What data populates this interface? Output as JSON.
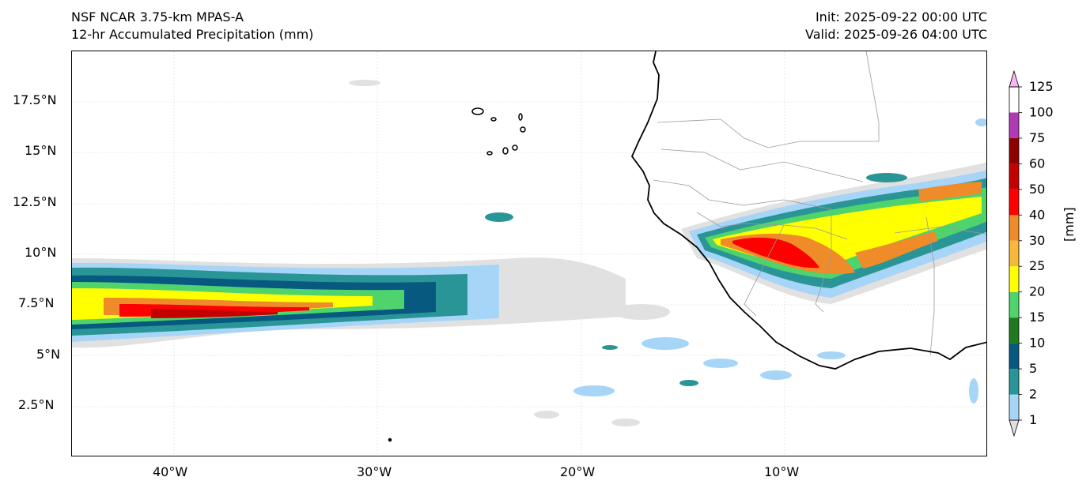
{
  "header": {
    "model": "NSF NCAR 3.75-km MPAS-A",
    "field": "12-hr Accumulated Precipitation (mm)",
    "init": "Init: 2025-09-22 00:00 UTC",
    "valid": "Valid: 2025-09-26 04:00 UTC"
  },
  "map": {
    "lon_range": [
      -45,
      0
    ],
    "lat_range": [
      0,
      20
    ],
    "lon_ticks": [
      "40°W",
      "30°W",
      "20°W",
      "10°W"
    ],
    "lat_ticks": [
      "17.5°N",
      "15°N",
      "12.5°N",
      "10°N",
      "7.5°N",
      "5°N",
      "2.5°N"
    ],
    "coastline_color": "#000000",
    "border_color": "#9a9a9a",
    "gridlines": true
  },
  "colorbar": {
    "unit": "[mm]",
    "levels": [
      "1",
      "2",
      "5",
      "10",
      "15",
      "20",
      "25",
      "30",
      "40",
      "50",
      "60",
      "75",
      "100",
      "125"
    ],
    "colors": [
      "#e1e1e1",
      "#a6d5f7",
      "#2a9596",
      "#07597f",
      "#1f7a1f",
      "#4fd36c",
      "#ffff00",
      "#f7b83a",
      "#ef8b29",
      "#ff0000",
      "#c40000",
      "#8b0000",
      "#b03ab3",
      "#f8b8f6"
    ]
  }
}
